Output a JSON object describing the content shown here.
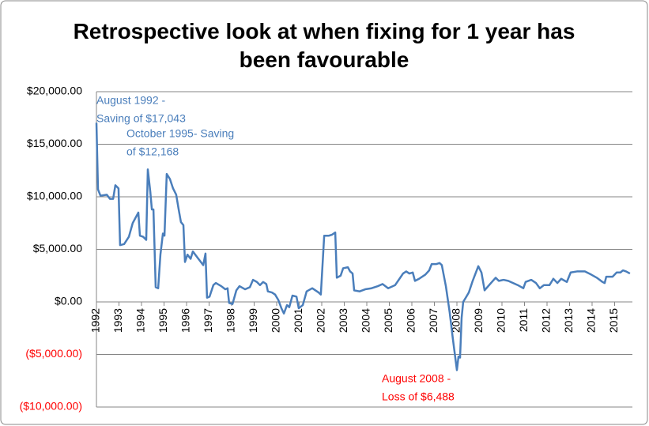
{
  "chart_data": {
    "type": "line",
    "title": "Retrospective look at when fixing for 1 year has been favourable",
    "color": "#4a7ebb",
    "negative_label_color": "#ff0000",
    "grid": true,
    "xlim": [
      1992,
      2015.79
    ],
    "xticks": [
      1992,
      1993,
      1994,
      1995,
      1996,
      1997,
      1998,
      1999,
      2000,
      2001,
      2002,
      2003,
      2004,
      2005,
      2006,
      2007,
      2008,
      2009,
      2010,
      2011,
      2012,
      2013,
      2014,
      2015
    ],
    "ylim": [
      -10000,
      20000
    ],
    "yticks": [
      {
        "value": -10000,
        "label": "($10,000.00)"
      },
      {
        "value": -5000,
        "label": "($5,000.00)"
      },
      {
        "value": 0,
        "label": "$0.00"
      },
      {
        "value": 5000,
        "label": "$5,000.00"
      },
      {
        "value": 10000,
        "label": "$10,000.00"
      },
      {
        "value": 15000,
        "label": "$15,000.00"
      },
      {
        "value": 20000,
        "label": "$20,000.00"
      }
    ],
    "annotations": [
      {
        "lines": [
          "August 1992 -",
          "Saving of $17,043"
        ],
        "color": "#4a7ebb"
      },
      {
        "lines": [
          "October 1995- Saving",
          "of $12,168"
        ],
        "color": "#4a7ebb"
      },
      {
        "lines": [
          "August 2008 -",
          "Loss of $6,488"
        ],
        "color": "#ff0000"
      }
    ],
    "x": [
      1992.0,
      1992.07,
      1992.18,
      1992.46,
      1992.6,
      1992.74,
      1992.84,
      1992.98,
      1993.05,
      1993.23,
      1993.44,
      1993.61,
      1993.86,
      1993.93,
      1994.07,
      1994.21,
      1994.28,
      1994.39,
      1994.46,
      1994.53,
      1994.63,
      1994.74,
      1994.84,
      1994.95,
      1995.02,
      1995.12,
      1995.26,
      1995.4,
      1995.54,
      1995.65,
      1995.75,
      1995.86,
      1995.93,
      1996.04,
      1996.18,
      1996.28,
      1996.49,
      1996.74,
      1996.84,
      1996.91,
      1997.02,
      1997.19,
      1997.3,
      1997.54,
      1997.72,
      1997.82,
      1997.89,
      1998.04,
      1998.21,
      1998.35,
      1998.6,
      1998.81,
      1998.95,
      1999.12,
      1999.26,
      1999.4,
      1999.54,
      1999.61,
      1999.79,
      1999.93,
      2000.07,
      2000.21,
      2000.32,
      2000.46,
      2000.56,
      2000.7,
      2000.88,
      2000.98,
      2001.16,
      2001.33,
      2001.58,
      2001.86,
      2001.96,
      2002.11,
      2002.32,
      2002.46,
      2002.6,
      2002.67,
      2002.84,
      2002.95,
      2003.16,
      2003.26,
      2003.37,
      2003.44,
      2003.68,
      2003.93,
      2004.21,
      2004.49,
      2004.7,
      2004.95,
      2005.26,
      2005.61,
      2005.75,
      2005.89,
      2006.04,
      2006.14,
      2006.32,
      2006.6,
      2006.77,
      2006.88,
      2007.09,
      2007.23,
      2007.33,
      2007.51,
      2007.68,
      2007.82,
      2008.0,
      2008.07,
      2008.14,
      2008.21,
      2008.28,
      2008.42,
      2008.53,
      2008.7,
      2008.95,
      2009.09,
      2009.23,
      2009.47,
      2009.72,
      2009.86,
      2010.07,
      2010.28,
      2010.7,
      2010.95,
      2011.05,
      2011.3,
      2011.51,
      2011.68,
      2011.86,
      2012.11,
      2012.28,
      2012.46,
      2012.63,
      2012.88,
      2013.05,
      2013.33,
      2013.68,
      2013.96,
      2014.21,
      2014.46,
      2014.56,
      2014.63,
      2014.91,
      2015.09,
      2015.26,
      2015.37,
      2015.51,
      2015.68
    ],
    "values": [
      17043,
      10700,
      10100,
      10200,
      9800,
      9800,
      11100,
      10800,
      5400,
      5500,
      6200,
      7500,
      8500,
      6300,
      6200,
      5900,
      12600,
      10500,
      8800,
      8800,
      1400,
      1300,
      4500,
      6500,
      6300,
      12168,
      11700,
      10800,
      10200,
      8800,
      7600,
      7300,
      3800,
      4500,
      4100,
      4800,
      4200,
      3500,
      4600,
      400,
      500,
      1600,
      1800,
      1500,
      1200,
      1300,
      -100,
      -200,
      1100,
      1500,
      1200,
      1400,
      2100,
      1900,
      1600,
      1900,
      1700,
      1000,
      900,
      700,
      200,
      -600,
      -1100,
      -300,
      -500,
      600,
      500,
      -600,
      -300,
      1000,
      1300,
      900,
      700,
      6300,
      6300,
      6400,
      6600,
      2300,
      2500,
      3200,
      3300,
      2900,
      2700,
      1100,
      1000,
      1200,
      1300,
      1500,
      1700,
      1300,
      1600,
      2700,
      2900,
      2700,
      2800,
      2000,
      2200,
      2600,
      3000,
      3600,
      3600,
      3700,
      3500,
      1500,
      -1000,
      -3500,
      -6488,
      -5200,
      -5300,
      -1500,
      0,
      500,
      900,
      2000,
      3400,
      2800,
      1100,
      1700,
      2300,
      2000,
      2100,
      2000,
      1600,
      1300,
      1900,
      2100,
      1800,
      1300,
      1600,
      1600,
      2200,
      1800,
      2200,
      1900,
      2800,
      2900,
      2900,
      2600,
      2300,
      1900,
      1800,
      2400,
      2400,
      2800,
      2800,
      3000,
      2900,
      2700
    ]
  }
}
